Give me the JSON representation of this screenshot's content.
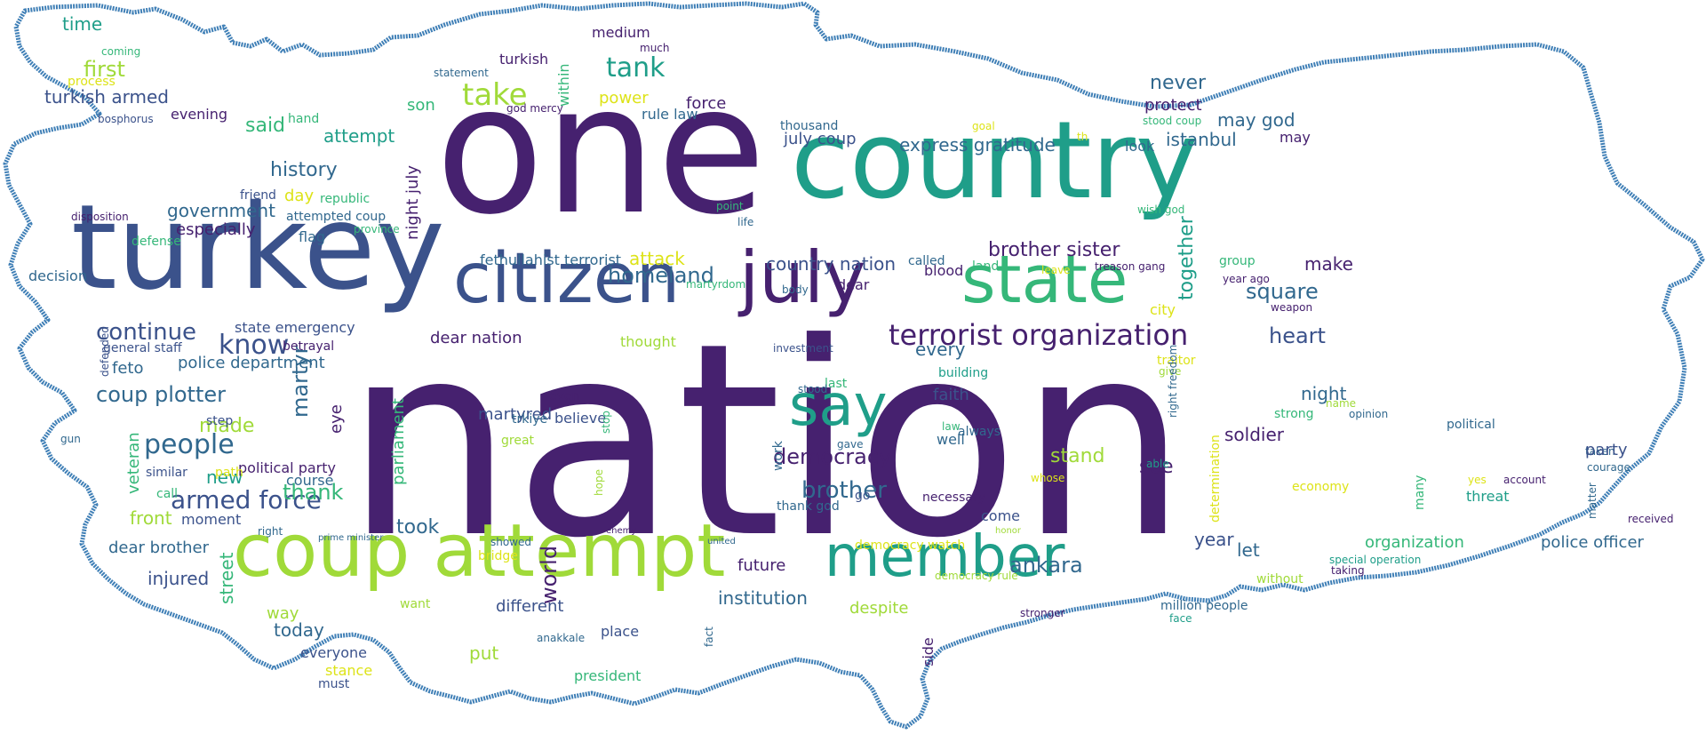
{
  "palette": {
    "outline": "#3f7fb6",
    "purple": "#46216f",
    "indigo": "#3b528b",
    "blue": "#31688e",
    "teal": "#21918c",
    "sea": "#1f9e89",
    "green": "#35b779",
    "lime": "#a0da39",
    "yellow": "#dde318"
  },
  "words": [
    "nation",
    "one",
    "country",
    "turkey",
    "citizen",
    "july",
    "state",
    "coup attempt",
    "member",
    "say",
    "terrorist organization",
    "take",
    "tank",
    "brother sister",
    "homeland",
    "know",
    "continue",
    "coup plotter",
    "people",
    "armed force",
    "history",
    "said",
    "first",
    "time",
    "turkish armed",
    "government",
    "especially",
    "attempt",
    "express gratitude",
    "istanbul",
    "never",
    "protect",
    "may god",
    "july coup",
    "democracy",
    "brother",
    "soldier",
    "square",
    "heart",
    "make",
    "together",
    "night",
    "see",
    "stand",
    "ankara",
    "took",
    "thank",
    "martyr",
    "world",
    "today",
    "put",
    "institution",
    "future",
    "street",
    "police department",
    "feto",
    "made",
    "new",
    "front",
    "injured",
    "dear brother",
    "eye",
    "martyred",
    "parliament",
    "political party",
    "course",
    "moment",
    "within",
    "son",
    "power",
    "medium",
    "turkish",
    "much",
    "statement",
    "force",
    "rule law",
    "evening",
    "hand",
    "bosphorus",
    "coming",
    "process",
    "god mercy",
    "thousand",
    "goal",
    "th",
    "stood coup",
    "look",
    "may",
    "night july",
    "day",
    "republic",
    "friend",
    "attempted coup",
    "flag",
    "province",
    "defense",
    "disposition",
    "decision",
    "fethullahist terrorist",
    "attack",
    "point",
    "life",
    "wish god",
    "called",
    "blood",
    "land",
    "leave",
    "group",
    "treason gang",
    "year ago",
    "weapon",
    "martyrdom",
    "body",
    "dear",
    "country nation",
    "city",
    "dear nation",
    "thought",
    "investment",
    "state emergency",
    "general staff",
    "betrayal",
    "defended",
    "every",
    "building",
    "faith",
    "traitor",
    "give",
    "right freedom",
    "last",
    "stood",
    "even",
    "believe",
    "trkiye",
    "great",
    "step",
    "strong",
    "name",
    "opinion",
    "gun",
    "veteran",
    "similar",
    "path",
    "call",
    "right",
    "political",
    "taken",
    "courage",
    "account",
    "yes",
    "threat",
    "matter",
    "received",
    "party",
    "police officer",
    "organization",
    "received2",
    "let",
    "year",
    "come",
    "necessary",
    "gave",
    "work",
    "law",
    "always",
    "well",
    "able",
    "whose",
    "hope",
    "stop",
    "go",
    "thank god",
    "honor",
    "enemy",
    "united",
    "showed",
    "bridge",
    "prime minister",
    "democracy watch",
    "democracy rule",
    "economy",
    "many",
    "without",
    "special operation",
    "taking",
    "million people",
    "face",
    "stronger",
    "despite",
    "side",
    "different",
    "way",
    "want",
    "place",
    "anakkale",
    "fact",
    "everyone",
    "stance",
    "must",
    "president",
    "determination"
  ]
}
